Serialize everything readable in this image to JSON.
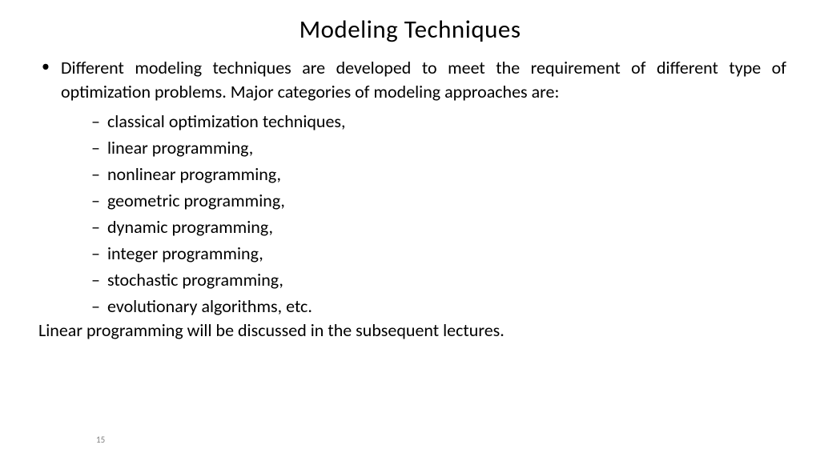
{
  "slide": {
    "title": "Modeling Techniques",
    "intro": "Different modeling techniques are developed to meet the requirement of different type of optimization problems. Major categories of modeling approaches are:",
    "sub_items": [
      "classical optimization techniques,",
      "linear programming,",
      "nonlinear programming,",
      "geometric programming,",
      "dynamic programming,",
      "integer programming,",
      "stochastic programming,",
      "evolutionary algorithms, etc."
    ],
    "closing": "Linear programming  will be discussed in the subsequent lectures.",
    "page_number": "15",
    "colors": {
      "background": "#ffffff",
      "text": "#000000",
      "page_num": "#808080"
    },
    "fonts": {
      "title_size_pt": 31,
      "body_size_pt": 22,
      "pagenum_size_pt": 11
    }
  }
}
